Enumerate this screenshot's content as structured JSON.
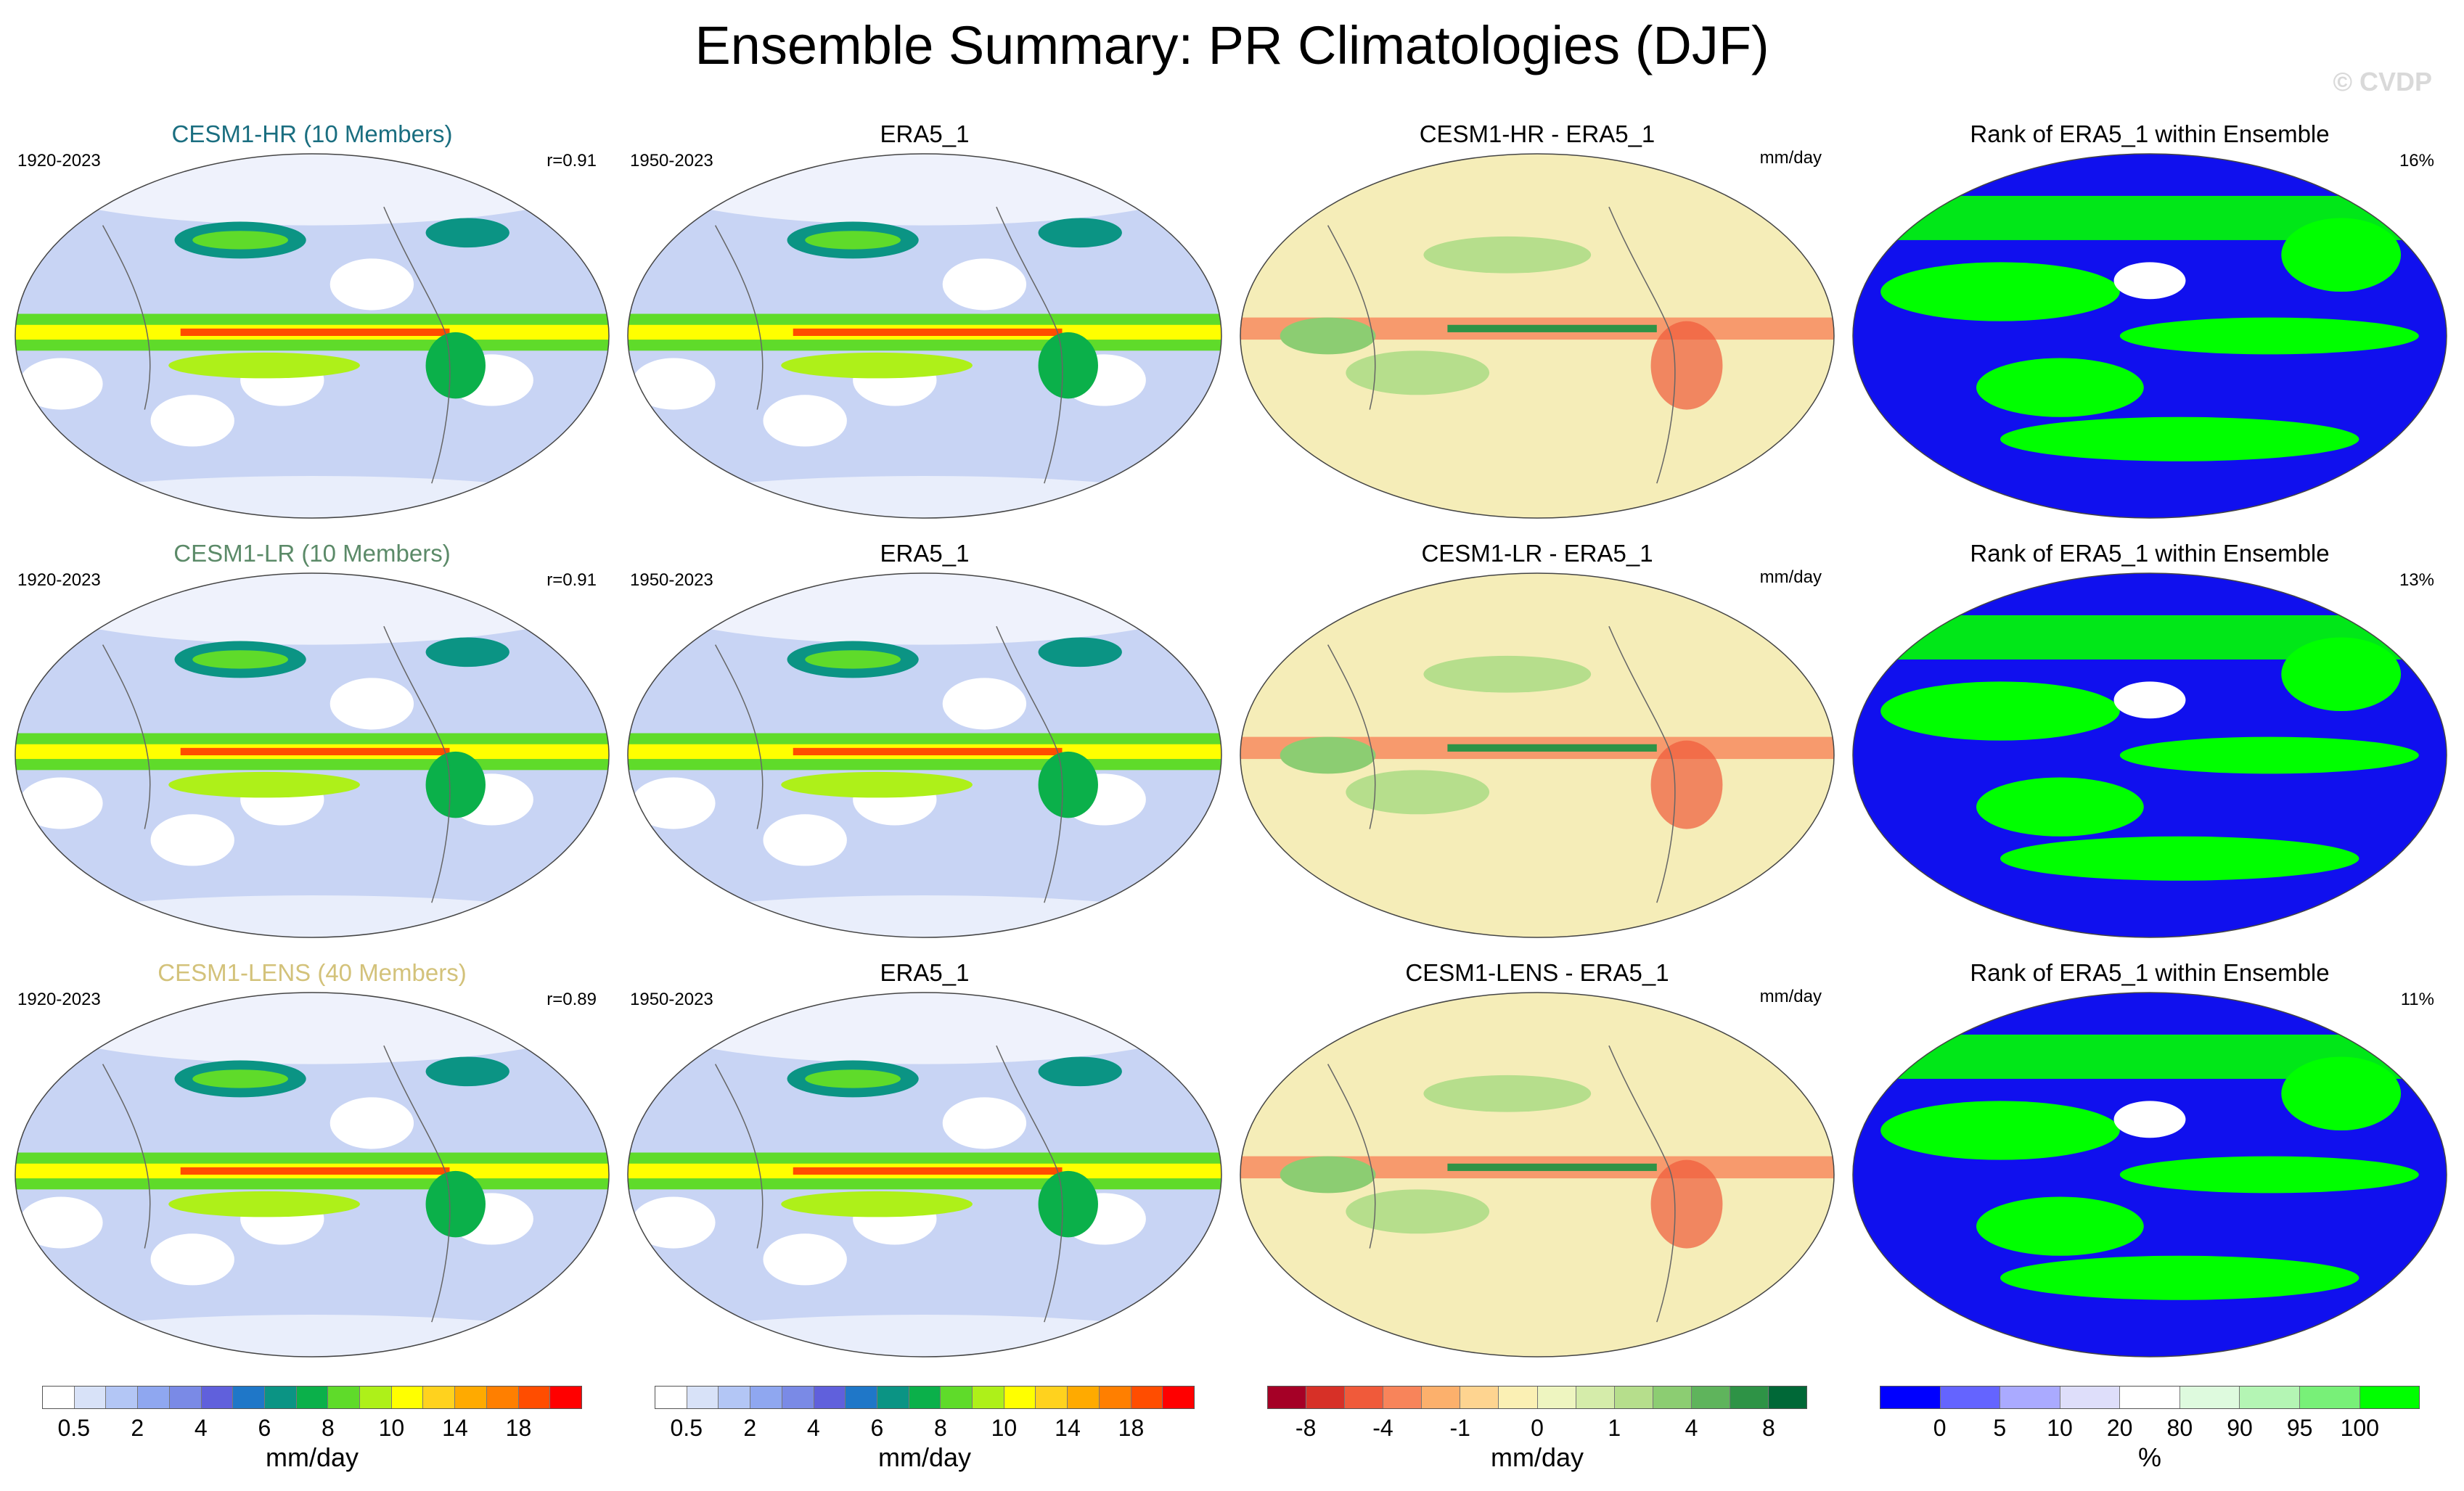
{
  "figure": {
    "title": "Ensemble Summary: PR Climatologies (DJF)",
    "watermark": "© CVDP"
  },
  "rows": [
    {
      "model_title": "CESM1-HR (10 Members)",
      "model_title_color": "#1a6e80",
      "model_years": "1920-2023",
      "model_r": "r=0.91",
      "obs_title": "ERA5_1",
      "obs_years": "1950-2023",
      "diff_title": "CESM1-HR - ERA5_1",
      "diff_units": "mm/day",
      "rank_title": "Rank of ERA5_1 within Ensemble",
      "rank_pct": "16%"
    },
    {
      "model_title": "CESM1-LR (10 Members)",
      "model_title_color": "#5b8a68",
      "model_years": "1920-2023",
      "model_r": "r=0.91",
      "obs_title": "ERA5_1",
      "obs_years": "1950-2023",
      "diff_title": "CESM1-LR - ERA5_1",
      "diff_units": "mm/day",
      "rank_title": "Rank of ERA5_1 within Ensemble",
      "rank_pct": "13%"
    },
    {
      "model_title": "CESM1-LENS (40 Members)",
      "model_title_color": "#d3c27a",
      "model_years": "1920-2023",
      "model_r": "r=0.89",
      "obs_title": "ERA5_1",
      "obs_years": "1950-2023",
      "diff_title": "CESM1-LENS - ERA5_1",
      "diff_units": "mm/day",
      "rank_title": "Rank of ERA5_1 within Ensemble",
      "rank_pct": "11%"
    }
  ],
  "colorbars": [
    {
      "units": "mm/day",
      "colors": [
        "#ffffff",
        "#d8e2f8",
        "#b3c6f5",
        "#8fa7f0",
        "#7a8ae6",
        "#6060dc",
        "#1f77c8",
        "#0b9484",
        "#0bb04a",
        "#5fdb2a",
        "#aef019",
        "#ffff00",
        "#ffd21e",
        "#ffaa00",
        "#ff7f00",
        "#ff4d00",
        "#ff0000"
      ],
      "labels": [
        "0.5",
        "2",
        "4",
        "6",
        "8",
        "10",
        "14",
        "18"
      ],
      "label_boundaries": [
        1,
        3,
        5,
        7,
        9,
        11,
        13,
        15
      ]
    },
    {
      "units": "mm/day",
      "colors": [
        "#ffffff",
        "#d8e2f8",
        "#b3c6f5",
        "#8fa7f0",
        "#7a8ae6",
        "#6060dc",
        "#1f77c8",
        "#0b9484",
        "#0bb04a",
        "#5fdb2a",
        "#aef019",
        "#ffff00",
        "#ffd21e",
        "#ffaa00",
        "#ff7f00",
        "#ff4d00",
        "#ff0000"
      ],
      "labels": [
        "0.5",
        "2",
        "4",
        "6",
        "8",
        "10",
        "14",
        "18"
      ],
      "label_boundaries": [
        1,
        3,
        5,
        7,
        9,
        11,
        13,
        15
      ]
    },
    {
      "units": "mm/day",
      "colors": [
        "#a50026",
        "#d73027",
        "#f05a3a",
        "#f8845a",
        "#fcb06c",
        "#fed490",
        "#fbf0b4",
        "#eef5c0",
        "#d5ecaa",
        "#b6de8c",
        "#8ccd72",
        "#5fb45c",
        "#2e9346",
        "#006837"
      ],
      "labels": [
        "-8",
        "-4",
        "-1",
        "0",
        "1",
        "4",
        "8"
      ],
      "label_boundaries": [
        1,
        3,
        5,
        7,
        9,
        11,
        13
      ]
    },
    {
      "units": "%",
      "colors": [
        "#0000ff",
        "#6464ff",
        "#aaaaff",
        "#dedefa",
        "#ffffff",
        "#defade",
        "#b4f5b4",
        "#78f078",
        "#00ff00"
      ],
      "labels": [
        "0",
        "5",
        "10",
        "20",
        "80",
        "90",
        "95",
        "100"
      ],
      "label_boundaries": [
        1,
        2,
        3,
        4,
        5,
        6,
        7,
        8
      ]
    }
  ]
}
